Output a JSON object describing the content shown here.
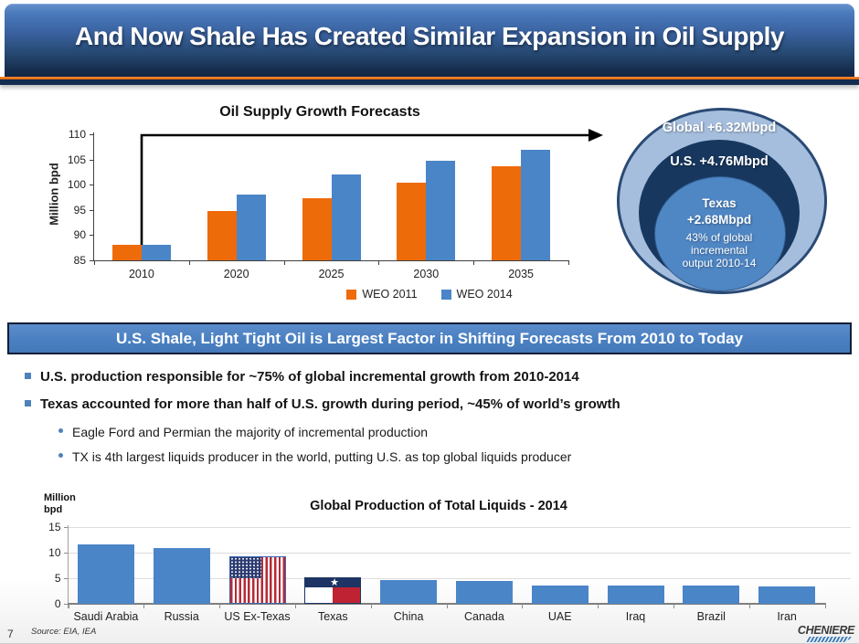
{
  "header": {
    "title": "And Now Shale Has Created Similar Expansion in Oil Supply"
  },
  "banner": {
    "text": "U.S. Shale, Light Tight Oil is Largest Factor in Shifting Forecasts From 2010 to Today"
  },
  "bullets": {
    "items": [
      {
        "level": 1,
        "text": "U.S. production responsible for ~75% of global incremental growth from 2010-2014"
      },
      {
        "level": 1,
        "text": "Texas accounted for more than half of U.S. growth during period, ~45% of world’s growth"
      },
      {
        "level": 2,
        "text": "Eagle Ford and Permian the majority of incremental production"
      },
      {
        "level": 2,
        "text": "TX is 4th largest liquids producer in the world, putting U.S. as top global liquids producer"
      }
    ]
  },
  "circles": {
    "outer": {
      "label": "Global +6.32Mbpd",
      "fill": "#a6bedd",
      "border": "#2a4a74"
    },
    "middle": {
      "label": "U.S. +4.76Mbpd",
      "fill": "#17375e"
    },
    "inner": {
      "title": "Texas",
      "value": "+2.68Mbpd",
      "note1": "43% of global",
      "note2": "incremental",
      "note3": "output 2010-14",
      "fill": "#4f86c4"
    }
  },
  "footer": {
    "page_number": "7",
    "source": "Source: EIA, IEA",
    "logo_text": "CHENIERE"
  },
  "chart_data": [
    {
      "type": "bar",
      "title": "Oil Supply Growth Forecasts",
      "ylabel": "Million bpd",
      "categories": [
        "2010",
        "2020",
        "2025",
        "2030",
        "2035"
      ],
      "series": [
        {
          "name": "WEO 2011",
          "color": "#ee6b09",
          "values": [
            88,
            94.7,
            97.3,
            100.4,
            103.7
          ]
        },
        {
          "name": "WEO 2014",
          "color": "#4a85c8",
          "values": [
            88,
            98.1,
            102,
            104.8,
            107
          ]
        }
      ],
      "ylim": [
        85,
        110
      ],
      "yticks": [
        85,
        90,
        95,
        100,
        105,
        110
      ],
      "legend_position": "bottom",
      "grid": false,
      "annotation": "black arrow from 2010 bars up to 110 then right toward nested circles"
    },
    {
      "type": "bar",
      "title": "Global Production of Total Liquids - 2014",
      "ylabel": "Million bpd",
      "categories": [
        "Saudi Arabia",
        "Russia",
        "US Ex-Texas",
        "Texas",
        "China",
        "Canada",
        "UAE",
        "Iraq",
        "Brazil",
        "Iran"
      ],
      "values": [
        11.6,
        10.9,
        9.3,
        5.2,
        4.6,
        4.5,
        3.5,
        3.5,
        3.5,
        3.4
      ],
      "ylim": [
        0,
        15
      ],
      "yticks": [
        0,
        5,
        10,
        15
      ],
      "grid": true,
      "legend_position": "none",
      "bar_color": "#4a85c8",
      "flag_bars": {
        "US Ex-Texas": "us-flag",
        "Texas": "texas-flag"
      }
    }
  ]
}
